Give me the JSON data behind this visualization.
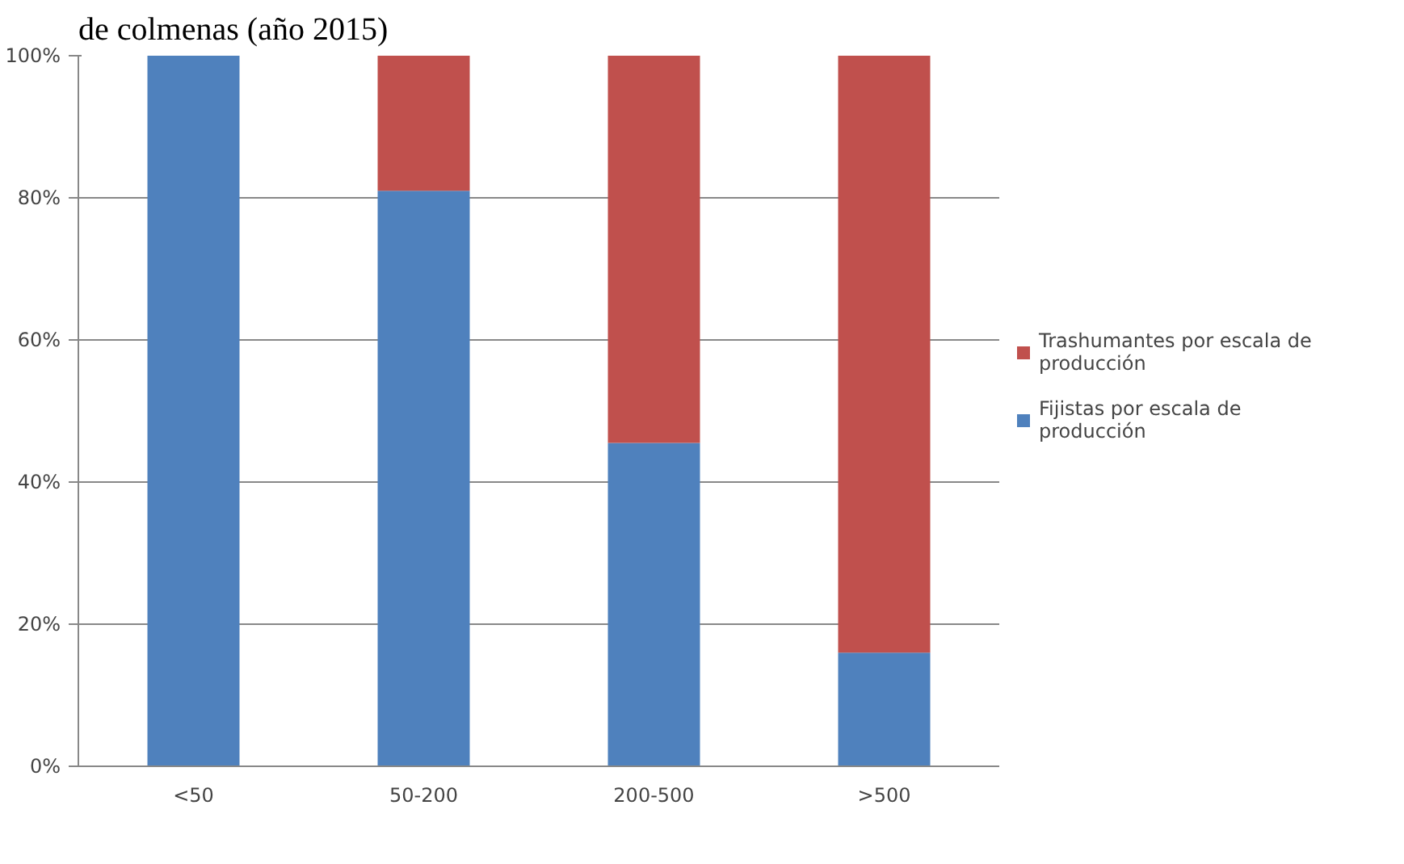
{
  "chart_data": {
    "type": "bar",
    "title": "de colmenas (año 2015)",
    "categories": [
      "<50",
      "50-200",
      "200-500",
      ">500"
    ],
    "stacked": true,
    "series": [
      {
        "name": "Fijistas por escala de producción",
        "color": "#4f81bd",
        "values": [
          100,
          81,
          45.5,
          16
        ]
      },
      {
        "name": "Trashumantes por escala de producción",
        "color": "#c0504d",
        "values": [
          0,
          19,
          54.5,
          84
        ]
      }
    ],
    "ylim": [
      0,
      100
    ],
    "yticks": [
      {
        "value": 0,
        "label": "0%"
      },
      {
        "value": 20,
        "label": "20%"
      },
      {
        "value": 40,
        "label": "40%"
      },
      {
        "value": 60,
        "label": "60%"
      },
      {
        "value": 80,
        "label": "80%"
      },
      {
        "value": 100,
        "label": "100%"
      }
    ],
    "grid": "y",
    "legend": "right"
  }
}
